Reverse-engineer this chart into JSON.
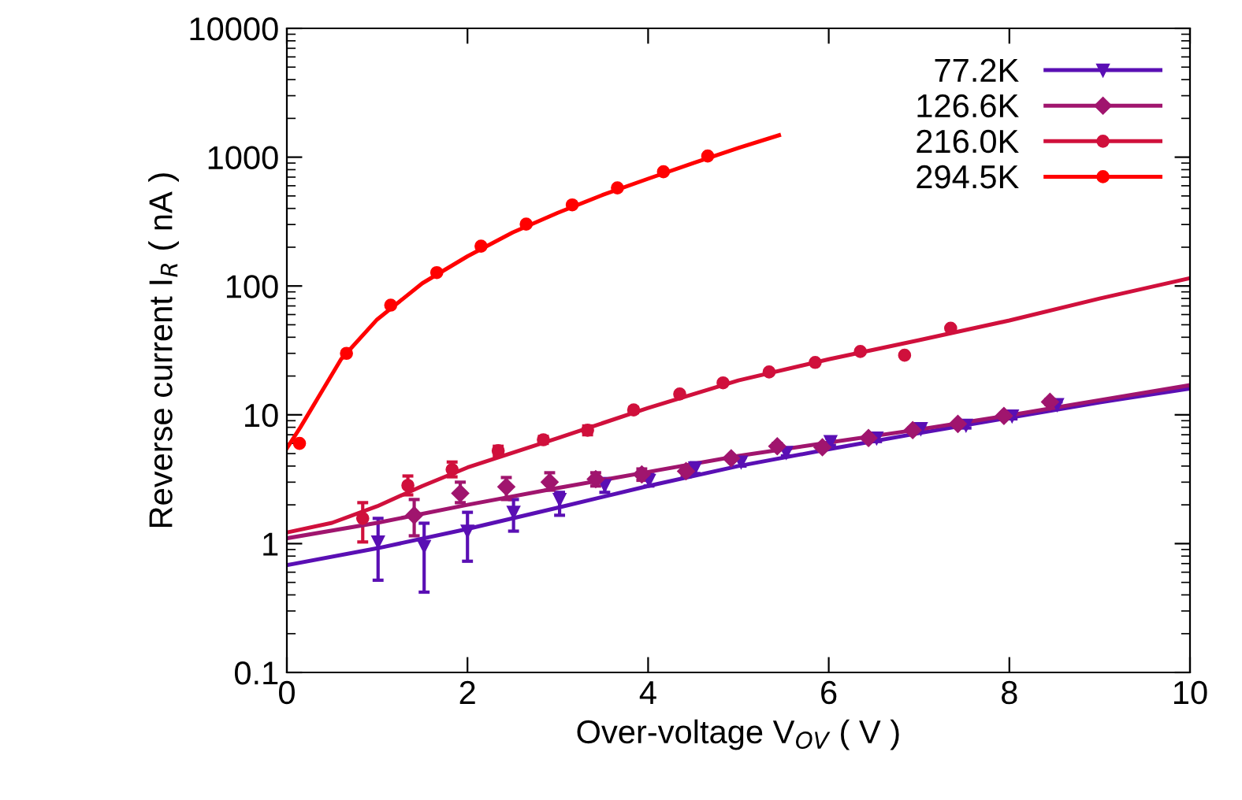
{
  "chart_data": {
    "type": "scatter",
    "xlabel": "Over-voltage V$_{OV}$ ( V )",
    "ylabel": "Reverse current I$_{R}$ ( nA )",
    "log": "y",
    "xlim": [
      0,
      10
    ],
    "ylim": [
      0.1,
      10000
    ],
    "xticks": [
      0,
      2,
      4,
      6,
      8,
      10
    ],
    "yticks": [
      0.1,
      1,
      10,
      100,
      1000,
      10000
    ],
    "grid": false,
    "legend": "top right",
    "series": [
      {
        "name": "77.2K",
        "color": "#5a0fb4",
        "marker": "triangle",
        "x": [
          1.01,
          1.52,
          2.0,
          2.51,
          3.02,
          3.52,
          4.01,
          4.52,
          5.03,
          5.53,
          6.02,
          6.53,
          7.02,
          7.52,
          8.03,
          8.53
        ],
        "values": [
          1.03,
          0.95,
          1.25,
          1.75,
          2.2,
          2.83,
          3.1,
          3.86,
          4.3,
          5.1,
          6.2,
          6.6,
          7.8,
          8.3,
          9.8,
          12.0
        ],
        "errors": [
          [
            0.52,
            1.57
          ],
          [
            0.42,
            1.44
          ],
          [
            0.73,
            1.75
          ],
          [
            1.25,
            2.2
          ],
          [
            1.66,
            2.5
          ],
          [
            2.5,
            3.2
          ],
          [
            2.8,
            3.45
          ],
          [
            3.5,
            4.25
          ],
          [
            4.0,
            4.65
          ],
          [
            4.8,
            5.45
          ],
          [
            5.8,
            6.6
          ],
          [
            6.2,
            7.0
          ],
          [
            7.4,
            8.2
          ],
          [
            7.9,
            8.8
          ],
          [
            9.3,
            10.3
          ],
          [
            11.4,
            12.6
          ]
        ]
      },
      {
        "name": "126.6K",
        "color": "#a0156e",
        "marker": "diamond",
        "x": [
          1.41,
          1.92,
          2.43,
          2.91,
          3.42,
          3.93,
          4.42,
          4.92,
          5.43,
          5.93,
          6.44,
          6.93,
          7.43,
          7.94,
          8.45
        ],
        "values": [
          1.66,
          2.46,
          2.76,
          3.0,
          3.17,
          3.45,
          3.65,
          4.6,
          5.7,
          5.6,
          6.6,
          7.6,
          8.5,
          9.8,
          12.6
        ],
        "errors": [
          [
            1.15,
            2.2
          ],
          [
            2.08,
            3.0
          ],
          [
            2.2,
            3.26
          ],
          [
            2.6,
            3.55
          ],
          [
            2.8,
            3.55
          ],
          [
            3.1,
            3.8
          ],
          [
            3.3,
            4.0
          ],
          null,
          [
            5.4,
            6.0
          ],
          null,
          null,
          [
            7.3,
            7.9
          ],
          null,
          [
            9.4,
            10.2
          ],
          [
            12.0,
            13.2
          ]
        ]
      },
      {
        "name": "216.0K",
        "color": "#d0103c",
        "marker": "circle",
        "x": [
          0.84,
          1.34,
          1.83,
          2.34,
          2.84,
          3.33,
          3.84,
          4.35,
          4.83,
          5.34,
          5.85,
          6.35,
          6.84,
          7.35
        ],
        "values": [
          1.57,
          2.83,
          3.76,
          5.26,
          6.4,
          7.6,
          10.9,
          14.5,
          17.7,
          21.5,
          25.5,
          31,
          29,
          47
        ],
        "errors": [
          [
            1.03,
            2.08
          ],
          [
            2.39,
            3.35
          ],
          [
            3.3,
            4.3
          ],
          [
            4.8,
            5.7
          ],
          [
            6.0,
            6.8
          ],
          [
            7.0,
            8.2
          ],
          [
            10.4,
            11.4
          ],
          null,
          null,
          null,
          null,
          null,
          null,
          null
        ]
      },
      {
        "name": "294.5K",
        "color": "#ff0000",
        "marker": "circle",
        "x": [
          0.14,
          0.66,
          1.15,
          1.66,
          2.15,
          2.65,
          3.16,
          3.66,
          4.17,
          4.66
        ],
        "values": [
          6.0,
          30,
          71,
          127,
          204,
          302,
          426,
          578,
          770,
          1020
        ]
      },
      {
        "type": "line",
        "color": "#5a0fb4",
        "x": [
          0,
          1,
          2,
          3,
          4,
          5,
          6,
          7,
          8,
          9,
          10
        ],
        "values": [
          0.68,
          0.92,
          1.3,
          1.9,
          2.8,
          4.0,
          5.4,
          7.2,
          9.5,
          12.5,
          16
        ]
      },
      {
        "type": "line",
        "color": "#a0156e",
        "x": [
          0,
          1,
          2,
          3,
          4,
          5,
          6,
          7,
          8,
          9,
          10
        ],
        "values": [
          1.1,
          1.45,
          2.0,
          2.7,
          3.6,
          4.8,
          6.1,
          7.7,
          9.9,
          13,
          17
        ]
      },
      {
        "type": "line",
        "color": "#d0103c",
        "x": [
          0,
          0.5,
          1,
          1.5,
          2,
          3,
          4,
          5,
          6,
          7,
          8,
          9,
          10
        ],
        "values": [
          1.22,
          1.45,
          1.95,
          2.8,
          3.9,
          6.6,
          11.3,
          18.5,
          27,
          38,
          54,
          80,
          115
        ]
      },
      {
        "type": "line",
        "color": "#ff0000",
        "x": [
          0,
          0.15,
          0.3,
          0.6,
          1,
          1.5,
          2,
          2.5,
          3,
          3.5,
          4,
          4.5,
          5,
          5.45
        ],
        "values": [
          5.5,
          8,
          12,
          27,
          55,
          105,
          170,
          260,
          370,
          510,
          680,
          900,
          1180,
          1480
        ]
      }
    ]
  }
}
